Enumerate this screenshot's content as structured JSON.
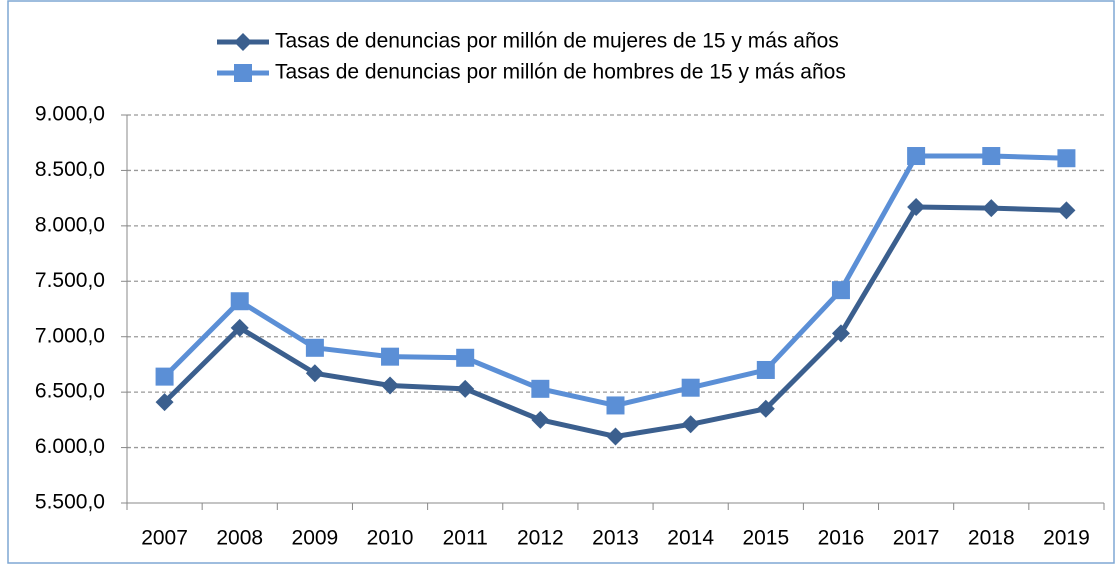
{
  "chart_data": {
    "type": "line",
    "categories": [
      "2007",
      "2008",
      "2009",
      "2010",
      "2011",
      "2012",
      "2013",
      "2014",
      "2015",
      "2016",
      "2017",
      "2018",
      "2019"
    ],
    "series": [
      {
        "name": "Tasas de denuncias por millón de mujeres de 15 y más años",
        "color": "#3b5f8e",
        "marker": "diamond",
        "values": [
          6410,
          7080,
          6670,
          6560,
          6530,
          6250,
          6100,
          6210,
          6350,
          7030,
          8170,
          8160,
          8140
        ]
      },
      {
        "name": "Tasas de denuncias por millón de hombres de 15 y más años",
        "color": "#5b8fd6",
        "marker": "square",
        "values": [
          6640,
          7320,
          6900,
          6820,
          6810,
          6530,
          6380,
          6540,
          6700,
          7420,
          8630,
          8630,
          8610
        ]
      }
    ],
    "ylim": [
      5500,
      9000
    ],
    "yticks": [
      {
        "value": 5500,
        "label": "5.500,0"
      },
      {
        "value": 6000,
        "label": "6.000,0"
      },
      {
        "value": 6500,
        "label": "6.500,0"
      },
      {
        "value": 7000,
        "label": "7.000,0"
      },
      {
        "value": 7500,
        "label": "7.500,0"
      },
      {
        "value": 8000,
        "label": "8.000,0"
      },
      {
        "value": 8500,
        "label": "8.500,0"
      },
      {
        "value": 9000,
        "label": "9.000,0"
      }
    ],
    "grid": true,
    "legend": "top"
  }
}
